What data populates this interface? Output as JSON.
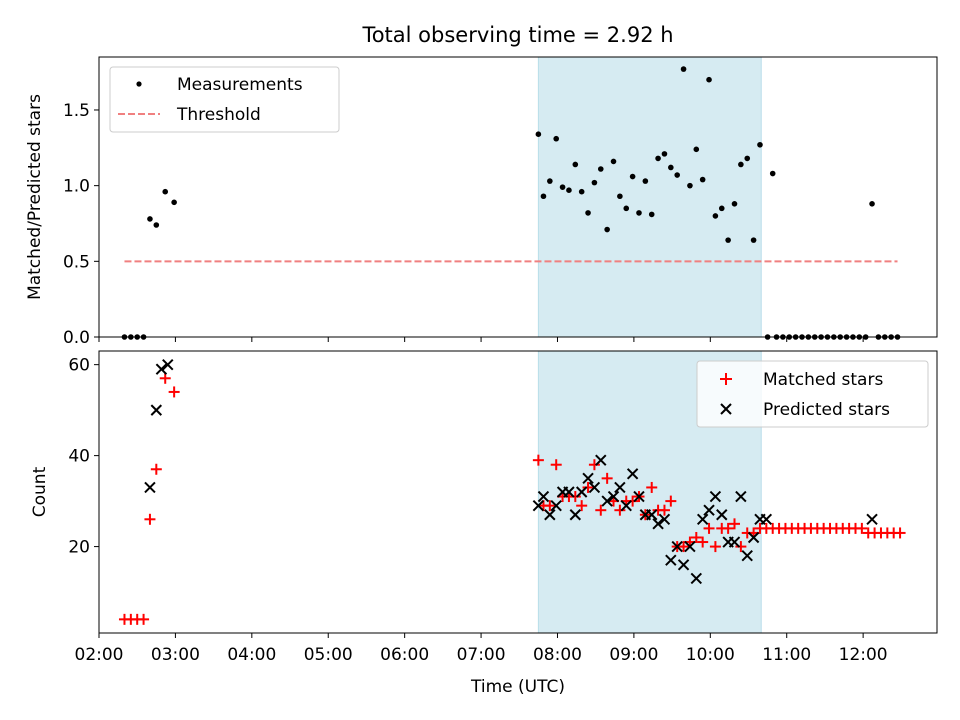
{
  "figure_title": "Total observing time = 2.92 h",
  "chart_data": [
    {
      "type": "scatter",
      "panel": "top",
      "xlabel": "",
      "ylabel": "Matched/Predicted stars",
      "xlim": [
        "02:00",
        "12:58"
      ],
      "ylim": [
        0,
        1.85
      ],
      "yticks": [
        0.0,
        0.5,
        1.0,
        1.5
      ],
      "ytick_labels": [
        "0.0",
        "0.5",
        "1.0",
        "1.5"
      ],
      "shaded_region": {
        "start": "07:45",
        "end": "10:40",
        "color": "#add8e6"
      },
      "legend_position": "upper left",
      "series": [
        {
          "name": "Measurements",
          "marker": "dot",
          "color": "#000000",
          "x": [
            "02:20",
            "02:25",
            "02:30",
            "02:35",
            "02:40",
            "02:45",
            "02:52",
            "02:59",
            "07:45",
            "07:49",
            "07:54",
            "07:59",
            "08:04",
            "08:09",
            "08:14",
            "08:19",
            "08:24",
            "08:29",
            "08:34",
            "08:39",
            "08:44",
            "08:49",
            "08:54",
            "08:59",
            "09:04",
            "09:09",
            "09:14",
            "09:19",
            "09:24",
            "09:29",
            "09:34",
            "09:39",
            "09:44",
            "09:49",
            "09:54",
            "09:59",
            "10:04",
            "10:09",
            "10:14",
            "10:19",
            "10:24",
            "10:29",
            "10:34",
            "10:39",
            "10:49",
            "10:45",
            "10:52",
            "10:57",
            "11:02",
            "11:07",
            "11:12",
            "11:17",
            "11:22",
            "11:27",
            "11:32",
            "11:37",
            "11:42",
            "11:47",
            "11:52",
            "11:57",
            "12:02",
            "12:07",
            "12:12",
            "12:17",
            "12:22",
            "12:27"
          ],
          "y": [
            0,
            0,
            0,
            0,
            0.78,
            0.74,
            0.96,
            0.89,
            1.34,
            0.93,
            1.03,
            1.31,
            0.99,
            0.97,
            1.14,
            0.96,
            0.82,
            1.02,
            1.11,
            0.71,
            1.16,
            0.93,
            0.85,
            1.06,
            0.82,
            1.03,
            0.81,
            1.18,
            1.21,
            1.12,
            1.07,
            1.77,
            1.0,
            1.24,
            1.04,
            1.7,
            0.8,
            0.85,
            0.64,
            0.88,
            1.14,
            1.18,
            0.64,
            1.27,
            1.08,
            0,
            0,
            0,
            0,
            0,
            0,
            0,
            0,
            0,
            0,
            0,
            0,
            0,
            0,
            0,
            0,
            0.88,
            0,
            0,
            0,
            0
          ]
        },
        {
          "name": "Threshold",
          "style": "dashed",
          "color": "#f08080",
          "x": [
            "02:20",
            "12:27"
          ],
          "y": [
            0.5,
            0.5
          ]
        }
      ]
    },
    {
      "type": "scatter",
      "panel": "bottom",
      "xlabel": "Time (UTC)",
      "ylabel": "Count",
      "xlim": [
        "02:00",
        "12:58"
      ],
      "ylim": [
        1,
        63
      ],
      "yticks": [
        20,
        40,
        60
      ],
      "ytick_labels": [
        "20",
        "40",
        "60"
      ],
      "xticks": [
        "02:00",
        "03:00",
        "04:00",
        "05:00",
        "06:00",
        "07:00",
        "08:00",
        "09:00",
        "10:00",
        "11:00",
        "12:00"
      ],
      "shaded_region": {
        "start": "07:45",
        "end": "10:40",
        "color": "#add8e6"
      },
      "legend_position": "upper right",
      "series": [
        {
          "name": "Matched stars",
          "marker": "plus",
          "color": "#ff0000",
          "x": [
            "02:20",
            "02:25",
            "02:30",
            "02:35",
            "02:40",
            "02:45",
            "02:52",
            "02:59",
            "07:45",
            "07:49",
            "07:54",
            "07:59",
            "08:04",
            "08:09",
            "08:14",
            "08:19",
            "08:24",
            "08:29",
            "08:34",
            "08:39",
            "08:44",
            "08:49",
            "08:54",
            "08:59",
            "09:04",
            "09:09",
            "09:14",
            "09:19",
            "09:24",
            "09:29",
            "09:34",
            "09:39",
            "09:44",
            "09:49",
            "09:54",
            "09:59",
            "10:04",
            "10:09",
            "10:14",
            "10:19",
            "10:24",
            "10:29",
            "10:34",
            "10:39",
            "10:44",
            "10:49",
            "10:54",
            "10:59",
            "11:04",
            "11:09",
            "11:14",
            "11:19",
            "11:24",
            "11:29",
            "11:34",
            "11:39",
            "11:44",
            "11:49",
            "11:54",
            "11:59",
            "12:04",
            "12:09",
            "12:14",
            "12:19",
            "12:24",
            "12:29"
          ],
          "y": [
            4,
            4,
            4,
            4,
            26,
            37,
            57,
            54,
            39,
            29,
            29,
            38,
            31,
            31,
            31,
            29,
            33,
            38,
            28,
            35,
            30,
            28,
            30,
            30,
            31,
            27,
            33,
            28,
            28,
            30,
            20,
            20,
            21,
            22,
            21,
            24,
            20,
            24,
            24,
            25,
            20,
            23,
            23,
            24,
            24,
            24,
            24,
            24,
            24,
            24,
            24,
            24,
            24,
            24,
            24,
            24,
            24,
            24,
            24,
            24,
            23,
            23,
            23,
            23,
            23,
            23
          ]
        },
        {
          "name": "Predicted stars",
          "marker": "x",
          "color": "#000000",
          "x": [
            "02:40",
            "02:45",
            "02:49",
            "02:54",
            "07:45",
            "07:49",
            "07:54",
            "07:59",
            "08:04",
            "08:09",
            "08:14",
            "08:19",
            "08:24",
            "08:29",
            "08:34",
            "08:39",
            "08:44",
            "08:49",
            "08:54",
            "08:59",
            "09:04",
            "09:09",
            "09:14",
            "09:19",
            "09:24",
            "09:29",
            "09:34",
            "09:39",
            "09:44",
            "09:49",
            "09:54",
            "09:59",
            "10:04",
            "10:09",
            "10:14",
            "10:19",
            "10:24",
            "10:29",
            "10:34",
            "10:39",
            "10:44",
            "12:07"
          ],
          "y": [
            33,
            50,
            59,
            60,
            29,
            31,
            27,
            29,
            32,
            32,
            27,
            32,
            35,
            33,
            39,
            30,
            31,
            33,
            29,
            36,
            31,
            27,
            27,
            25,
            26,
            17,
            20,
            16,
            20,
            13,
            26,
            28,
            31,
            27,
            21,
            21,
            31,
            18,
            22,
            26,
            26,
            26
          ]
        }
      ]
    }
  ]
}
